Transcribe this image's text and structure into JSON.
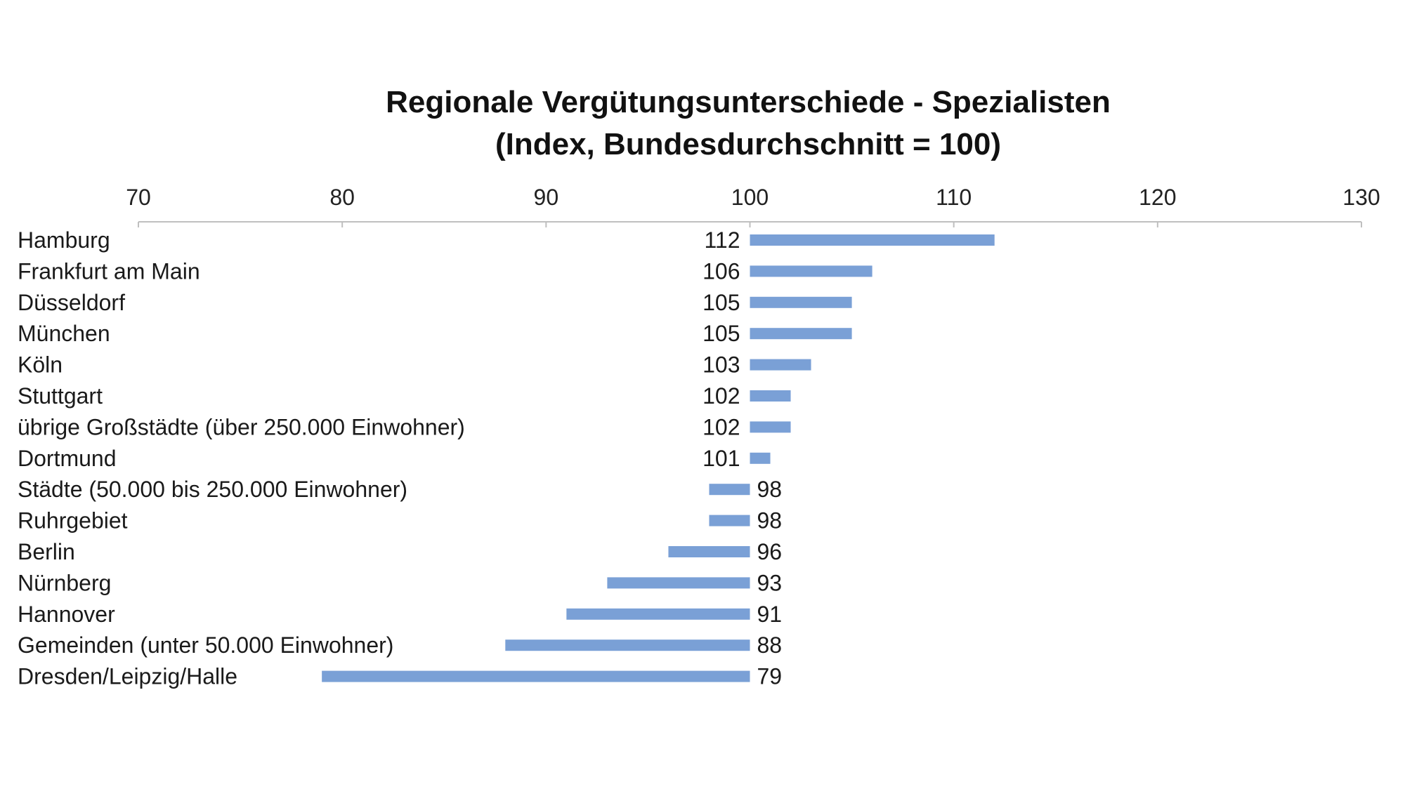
{
  "chart_data": {
    "type": "bar",
    "orientation": "horizontal",
    "title": "Regionale Vergütungsunterschiede - Spezialisten",
    "subtitle": "(Index, Bundesdurchschnitt = 100)",
    "xlim": [
      70,
      130
    ],
    "baseline": 100,
    "xticks": [
      70,
      80,
      90,
      100,
      110,
      120,
      130
    ],
    "axis_position": "top",
    "grid": false,
    "bar_color": "#7aa0d6",
    "categories": [
      "Hamburg",
      "Frankfurt am Main",
      "Düsseldorf",
      "München",
      "Köln",
      "Stuttgart",
      "übrige Großstädte (über 250.000 Einwohner)",
      "Dortmund",
      "Städte (50.000 bis 250.000 Einwohner)",
      "Ruhrgebiet",
      "Berlin",
      "Nürnberg",
      "Hannover",
      "Gemeinden (unter 50.000 Einwohner)",
      "Dresden/Leipzig/Halle"
    ],
    "values": [
      112,
      106,
      105,
      105,
      103,
      102,
      102,
      101,
      98,
      98,
      96,
      93,
      91,
      88,
      79
    ]
  }
}
